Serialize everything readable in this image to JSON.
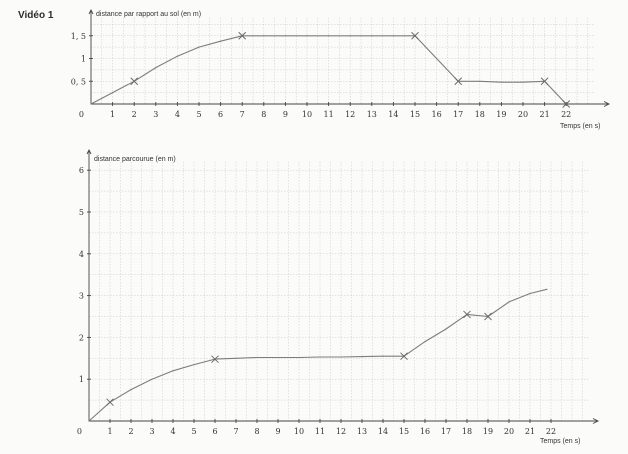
{
  "page": {
    "label": "Vidéo 1"
  },
  "chart_data": [
    {
      "type": "line",
      "title": "",
      "ylabel": "distance par rapport au sol (en m)",
      "xlabel": "Temps (en s)",
      "x_ticks": [
        1,
        2,
        3,
        4,
        5,
        6,
        7,
        8,
        9,
        10,
        11,
        12,
        13,
        14,
        15,
        16,
        17,
        18,
        19,
        20,
        21,
        22
      ],
      "y_ticks": [
        0,
        0.5,
        1,
        1.5
      ],
      "y_tick_labels": [
        "0",
        "0, 5",
        "1",
        "1, 5"
      ],
      "xlim": [
        0,
        23.5
      ],
      "ylim": [
        0,
        1.8
      ],
      "grid": true,
      "series": [
        {
          "points": [
            [
              0,
              0
            ],
            [
              1,
              0.25
            ],
            [
              2,
              0.5
            ],
            [
              3,
              0.8
            ],
            [
              4,
              1.05
            ],
            [
              5,
              1.25
            ],
            [
              6,
              1.38
            ],
            [
              7,
              1.5
            ],
            [
              8,
              1.5
            ],
            [
              9,
              1.5
            ],
            [
              10,
              1.5
            ],
            [
              11,
              1.5
            ],
            [
              12,
              1.5
            ],
            [
              13,
              1.5
            ],
            [
              14,
              1.5
            ],
            [
              15,
              1.5
            ],
            [
              16,
              1.0
            ],
            [
              17,
              0.5
            ],
            [
              18,
              0.5
            ],
            [
              19,
              0.48
            ],
            [
              20,
              0.48
            ],
            [
              21,
              0.5
            ],
            [
              22,
              0
            ]
          ],
          "markers_x": [
            2,
            7,
            15,
            17,
            21,
            22
          ]
        }
      ]
    },
    {
      "type": "line",
      "title": "",
      "ylabel": "distance parcourue (en m)",
      "xlabel": "Temps (en s)",
      "x_ticks": [
        1,
        2,
        3,
        4,
        5,
        6,
        7,
        8,
        9,
        10,
        11,
        12,
        13,
        14,
        15,
        16,
        17,
        18,
        19,
        20,
        21,
        22
      ],
      "y_ticks": [
        0,
        1,
        2,
        3,
        4,
        5,
        6
      ],
      "y_tick_labels": [
        "0",
        "1",
        "2",
        "3",
        "4",
        "5",
        "6"
      ],
      "xlim": [
        0,
        23.5
      ],
      "ylim": [
        0,
        6.3
      ],
      "grid": true,
      "series": [
        {
          "points": [
            [
              0,
              0
            ],
            [
              1,
              0.45
            ],
            [
              2,
              0.75
            ],
            [
              3,
              1.0
            ],
            [
              4,
              1.2
            ],
            [
              5,
              1.35
            ],
            [
              6,
              1.48
            ],
            [
              7,
              1.5
            ],
            [
              8,
              1.52
            ],
            [
              9,
              1.52
            ],
            [
              10,
              1.52
            ],
            [
              11,
              1.53
            ],
            [
              12,
              1.53
            ],
            [
              13,
              1.54
            ],
            [
              14,
              1.55
            ],
            [
              15,
              1.55
            ],
            [
              16,
              1.9
            ],
            [
              17,
              2.2
            ],
            [
              18,
              2.55
            ],
            [
              19,
              2.5
            ],
            [
              20,
              2.85
            ],
            [
              21,
              3.05
            ],
            [
              21.8,
              3.15
            ]
          ],
          "markers_x": [
            1,
            6,
            15,
            18,
            19
          ]
        }
      ]
    }
  ]
}
